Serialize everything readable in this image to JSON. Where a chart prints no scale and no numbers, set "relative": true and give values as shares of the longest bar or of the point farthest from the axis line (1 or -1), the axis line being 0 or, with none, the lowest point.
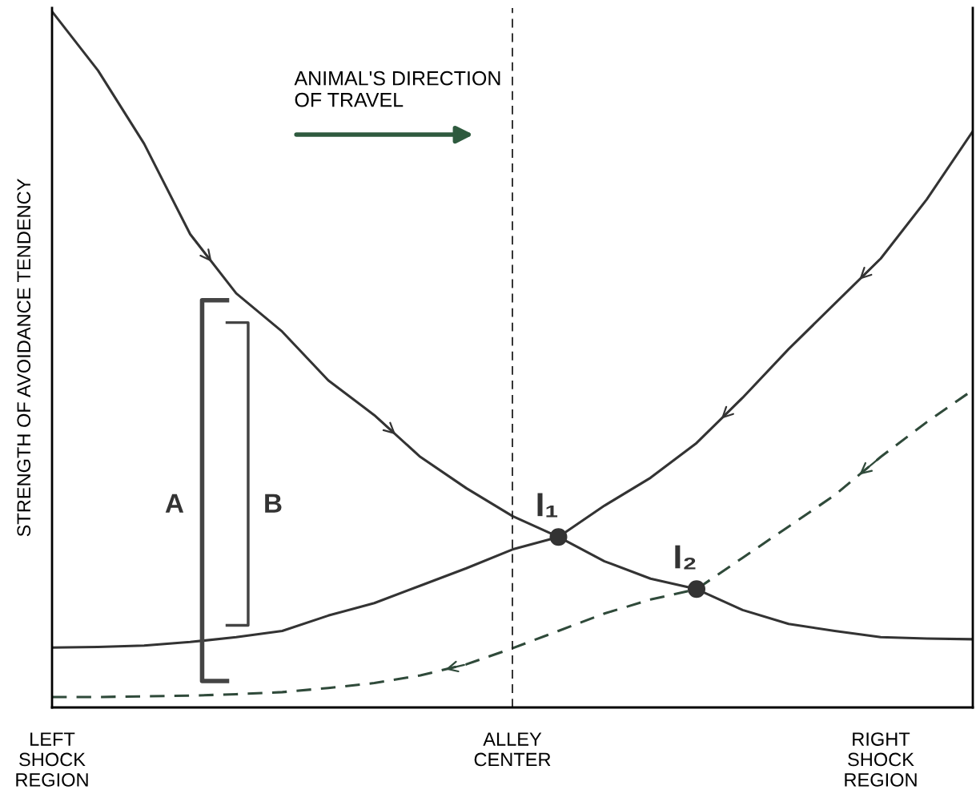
{
  "chart_data": {
    "type": "line",
    "relative": true,
    "ylabel": "STRENGTH OF AVOIDANCE TENDENCY",
    "categories": [
      "LEFT\nSHOCK\nREGION",
      null,
      null,
      null,
      null,
      null,
      null,
      null,
      null,
      null,
      "ALLEY\nCENTER",
      null,
      null,
      null,
      null,
      null,
      null,
      null,
      "RIGHT\nSHOCK\nREGION",
      null,
      null
    ],
    "series": [
      {
        "color": "#333333",
        "line_style": "solid",
        "values": [
          1.0,
          0.915,
          0.81,
          0.68,
          0.595,
          0.54,
          0.47,
          0.42,
          0.36,
          0.315,
          0.275,
          0.245,
          0.21,
          0.185,
          0.17,
          0.14,
          0.12,
          0.11,
          0.101,
          0.099,
          0.098
        ]
      },
      {
        "color": "#333333",
        "line_style": "solid",
        "values": [
          0.086,
          0.087,
          0.089,
          0.094,
          0.101,
          0.11,
          0.132,
          0.15,
          0.175,
          0.2,
          0.227,
          0.245,
          0.29,
          0.33,
          0.38,
          0.445,
          0.515,
          0.58,
          0.645,
          0.73,
          0.828
        ]
      },
      {
        "color": "#2f4a3a",
        "line_style": "dashed",
        "values": [
          0.015,
          0.015,
          0.016,
          0.017,
          0.019,
          0.022,
          0.028,
          0.035,
          0.046,
          0.062,
          0.085,
          0.11,
          0.135,
          0.155,
          0.17,
          0.215,
          0.26,
          0.305,
          0.36,
          0.41,
          0.456
        ]
      },
      {
        "type": "scatter",
        "color": "#333333",
        "marker": "circle",
        "values": [
          null,
          null,
          null,
          null,
          null,
          null,
          null,
          null,
          null,
          null,
          null,
          0.245,
          null,
          null,
          0.17,
          null,
          null,
          null,
          null,
          null,
          null
        ]
      }
    ],
    "ref_lines": [
      {
        "axis": "x",
        "value": "ALLEY\nCENTER",
        "color": "#222222",
        "line_style": "dashed"
      }
    ],
    "annotations": [
      "ANIMAL'S DIRECTION\nOF TRAVEL",
      "A",
      "B",
      "I₁",
      "I₂"
    ],
    "grid": false,
    "legend": false
  }
}
